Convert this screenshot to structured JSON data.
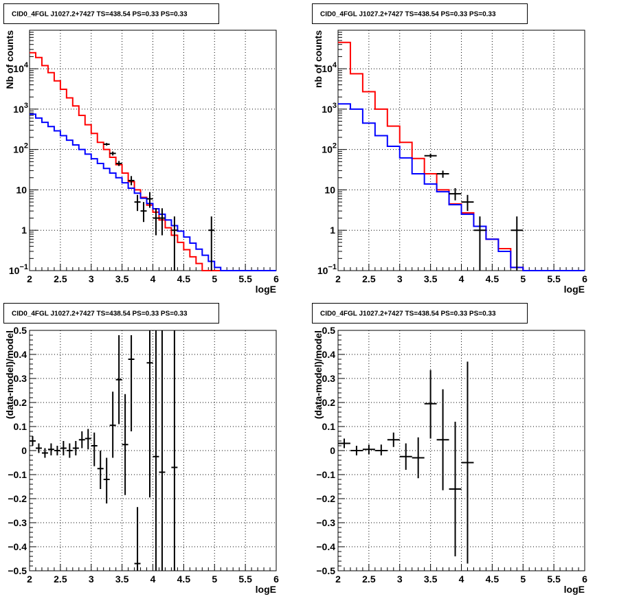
{
  "colors": {
    "data": "#000000",
    "model": "#ff0000",
    "background_component": "#0000ff",
    "grid": "#000000"
  },
  "chart_data": [
    {
      "type": "line",
      "title": "CID0_4FGL J1027.2+7427 TS=438.54 PS=0.33 PS=0.33",
      "xlabel": "logE",
      "ylabel": "Nb of counts",
      "xlim": [
        2,
        6
      ],
      "ylim": [
        0.1,
        90000
      ],
      "yscale": "log",
      "grid": true,
      "xticks": [
        "2",
        "2.5",
        "3",
        "3.5",
        "4",
        "4.5",
        "5",
        "5.5",
        "6"
      ],
      "yticks": [
        {
          "value": 0.1,
          "label": "10",
          "exp": "−1"
        },
        {
          "value": 1,
          "label": "1",
          "exp": ""
        },
        {
          "value": 10,
          "label": "10",
          "exp": ""
        },
        {
          "value": 100,
          "label": "10",
          "exp": "2"
        },
        {
          "value": 1000,
          "label": "10",
          "exp": "3"
        },
        {
          "value": 10000,
          "label": "10",
          "exp": "4"
        }
      ],
      "bin_edges": [
        2,
        2.1,
        2.2,
        2.3,
        2.4,
        2.5,
        2.6,
        2.7,
        2.8,
        2.9,
        3,
        3.1,
        3.2,
        3.3,
        3.4,
        3.5,
        3.6,
        3.7,
        3.8,
        3.9,
        4,
        4.1,
        4.2,
        4.3,
        4.4,
        4.5,
        4.6,
        4.7,
        4.8,
        4.9,
        5,
        5.1,
        5.2,
        5.3,
        5.4,
        5.5,
        5.6,
        5.7,
        5.8,
        5.9,
        6
      ],
      "series": [
        {
          "kind": "histogram",
          "color": "red",
          "values": [
            25000,
            19000,
            12000,
            8000,
            5000,
            3100,
            1900,
            1200,
            700,
            410,
            250,
            150,
            100,
            64,
            42,
            26,
            16,
            10,
            6.5,
            4.2,
            2.8,
            1.8,
            1.15,
            0.75,
            0.5,
            0.33,
            0.22,
            0.15,
            0.1,
            0.1,
            0.1,
            0.1,
            0.1,
            0.1,
            0.1,
            0.1,
            0.1,
            0.1,
            0.1,
            0.1
          ]
        },
        {
          "kind": "histogram",
          "color": "blue",
          "values": [
            750,
            600,
            470,
            370,
            290,
            220,
            170,
            130,
            100,
            77,
            59,
            45,
            34,
            26,
            20,
            15,
            11,
            8.3,
            6.2,
            4.6,
            3.4,
            2.5,
            1.8,
            1.3,
            0.95,
            0.68,
            0.48,
            0.34,
            0.24,
            0.17,
            0.12,
            0.1,
            0.1,
            0.1,
            0.1,
            0.1,
            0.1,
            0.1,
            0.1,
            0.1
          ]
        },
        {
          "kind": "points",
          "color": "black",
          "points": [
            {
              "x": 3.25,
              "xerr": 0.05,
              "y": 135,
              "ylo": 125,
              "yhi": 145
            },
            {
              "x": 3.35,
              "xerr": 0.05,
              "y": 80,
              "ylo": 71,
              "yhi": 89
            },
            {
              "x": 3.45,
              "xerr": 0.05,
              "y": 45,
              "ylo": 39,
              "yhi": 52
            },
            {
              "x": 3.65,
              "xerr": 0.05,
              "y": 17,
              "ylo": 13,
              "yhi": 22
            },
            {
              "x": 3.75,
              "xerr": 0.05,
              "y": 5,
              "ylo": 3,
              "yhi": 7.5
            },
            {
              "x": 3.85,
              "xerr": 0.05,
              "y": 3,
              "ylo": 1.6,
              "yhi": 5
            },
            {
              "x": 3.95,
              "xerr": 0.05,
              "y": 6,
              "ylo": 3.6,
              "yhi": 8.8
            },
            {
              "x": 4.05,
              "xerr": 0.05,
              "y": 2,
              "ylo": 0.75,
              "yhi": 3.5
            },
            {
              "x": 4.15,
              "xerr": 0.05,
              "y": 2,
              "ylo": 0.75,
              "yhi": 3.5
            },
            {
              "x": 4.35,
              "xerr": 0.05,
              "y": 1,
              "ylo": 0.1,
              "yhi": 2.2
            },
            {
              "x": 4.95,
              "xerr": 0.05,
              "y": 1,
              "ylo": 0.1,
              "yhi": 2.2
            }
          ]
        }
      ]
    },
    {
      "type": "line",
      "title": "CID0_4FGL J1027.2+7427 TS=438.54 PS=0.33 PS=0.33",
      "xlabel": "logE",
      "ylabel": "nb of counts",
      "xlim": [
        2,
        6
      ],
      "ylim": [
        0.1,
        90000
      ],
      "yscale": "log",
      "grid": true,
      "xticks": [
        "2",
        "2.5",
        "3",
        "3.5",
        "4",
        "4.5",
        "5",
        "5.5",
        "6"
      ],
      "yticks": [
        {
          "value": 0.1,
          "label": "10",
          "exp": "−1"
        },
        {
          "value": 1,
          "label": "1",
          "exp": ""
        },
        {
          "value": 10,
          "label": "10",
          "exp": ""
        },
        {
          "value": 100,
          "label": "10",
          "exp": "2"
        },
        {
          "value": 1000,
          "label": "10",
          "exp": "3"
        },
        {
          "value": 10000,
          "label": "10",
          "exp": "4"
        }
      ],
      "bin_edges": [
        2,
        2.2,
        2.4,
        2.6,
        2.8,
        3,
        3.2,
        3.4,
        3.6,
        3.8,
        4,
        4.2,
        4.4,
        4.6,
        4.8,
        5,
        5.2,
        5.4,
        5.6,
        5.8,
        6
      ],
      "series": [
        {
          "kind": "histogram",
          "color": "red",
          "values": [
            45000,
            7500,
            2700,
            1000,
            380,
            150,
            60,
            25,
            10,
            4.5,
            2.7,
            1.25,
            0.6,
            0.35,
            0.12,
            0.1,
            0.1,
            0.1,
            0.1,
            0.1
          ]
        },
        {
          "kind": "histogram",
          "color": "blue",
          "values": [
            1350,
            1000,
            450,
            220,
            120,
            62,
            25,
            14,
            9,
            4.3,
            2.5,
            1.25,
            0.6,
            0.3,
            0.12,
            0.1,
            0.1,
            0.1,
            0.1,
            0.1
          ]
        },
        {
          "kind": "points",
          "color": "black",
          "points": [
            {
              "x": 3.5,
              "xerr": 0.1,
              "y": 70,
              "ylo": 62,
              "yhi": 79
            },
            {
              "x": 3.7,
              "xerr": 0.1,
              "y": 25,
              "ylo": 20,
              "yhi": 30
            },
            {
              "x": 3.9,
              "xerr": 0.1,
              "y": 8,
              "ylo": 5.5,
              "yhi": 11
            },
            {
              "x": 4.1,
              "xerr": 0.1,
              "y": 5,
              "ylo": 3,
              "yhi": 7.5
            },
            {
              "x": 4.3,
              "xerr": 0.1,
              "y": 1,
              "ylo": 0.1,
              "yhi": 2.2
            },
            {
              "x": 4.9,
              "xerr": 0.1,
              "y": 1,
              "ylo": 0.1,
              "yhi": 2.2
            }
          ]
        }
      ]
    },
    {
      "type": "scatter",
      "title": "CID0_4FGL J1027.2+7427 TS=438.54 PS=0.33 PS=0.33",
      "xlabel": "logE",
      "ylabel": "(data-model)/model",
      "xlim": [
        2,
        6
      ],
      "ylim": [
        -0.5,
        0.5
      ],
      "yscale": "linear",
      "grid": true,
      "xticks": [
        "2",
        "2.5",
        "3",
        "3.5",
        "4",
        "4.5",
        "5",
        "5.5",
        "6"
      ],
      "yticks": [
        {
          "value": -0.5,
          "label": "−0.5",
          "exp": ""
        },
        {
          "value": -0.4,
          "label": "−0.4",
          "exp": ""
        },
        {
          "value": -0.3,
          "label": "−0.3",
          "exp": ""
        },
        {
          "value": -0.2,
          "label": "−0.2",
          "exp": ""
        },
        {
          "value": -0.1,
          "label": "−0.1",
          "exp": ""
        },
        {
          "value": 0,
          "label": "0",
          "exp": ""
        },
        {
          "value": 0.1,
          "label": "0.1",
          "exp": ""
        },
        {
          "value": 0.2,
          "label": "0.2",
          "exp": ""
        },
        {
          "value": 0.3,
          "label": "0.3",
          "exp": ""
        },
        {
          "value": 0.4,
          "label": "0.4",
          "exp": ""
        },
        {
          "value": 0.5,
          "label": "0.5",
          "exp": ""
        }
      ],
      "series": [
        {
          "kind": "points",
          "color": "black",
          "points": [
            {
              "x": 2.05,
              "xerr": 0.05,
              "y": 0.04,
              "ylo": 0.02,
              "yhi": 0.06
            },
            {
              "x": 2.15,
              "xerr": 0.05,
              "y": 0.01,
              "ylo": -0.01,
              "yhi": 0.03
            },
            {
              "x": 2.25,
              "xerr": 0.05,
              "y": -0.01,
              "ylo": -0.03,
              "yhi": 0.01
            },
            {
              "x": 2.35,
              "xerr": 0.05,
              "y": 0.005,
              "ylo": -0.02,
              "yhi": 0.03
            },
            {
              "x": 2.45,
              "xerr": 0.05,
              "y": 0.0,
              "ylo": -0.02,
              "yhi": 0.02
            },
            {
              "x": 2.55,
              "xerr": 0.05,
              "y": 0.01,
              "ylo": -0.02,
              "yhi": 0.04
            },
            {
              "x": 2.65,
              "xerr": 0.05,
              "y": 0.0,
              "ylo": -0.03,
              "yhi": 0.03
            },
            {
              "x": 2.75,
              "xerr": 0.05,
              "y": 0.01,
              "ylo": -0.02,
              "yhi": 0.04
            },
            {
              "x": 2.85,
              "xerr": 0.05,
              "y": 0.045,
              "ylo": 0.01,
              "yhi": 0.08
            },
            {
              "x": 2.95,
              "xerr": 0.05,
              "y": 0.05,
              "ylo": 0.005,
              "yhi": 0.09
            },
            {
              "x": 3.05,
              "xerr": 0.05,
              "y": 0.02,
              "ylo": -0.065,
              "yhi": 0.075
            },
            {
              "x": 3.15,
              "xerr": 0.05,
              "y": -0.075,
              "ylo": -0.16,
              "yhi": 0.0
            },
            {
              "x": 3.25,
              "xerr": 0.05,
              "y": -0.12,
              "ylo": -0.22,
              "yhi": -0.03
            },
            {
              "x": 3.35,
              "xerr": 0.05,
              "y": 0.105,
              "ylo": -0.03,
              "yhi": 0.245
            },
            {
              "x": 3.45,
              "xerr": 0.05,
              "y": 0.295,
              "ylo": 0.11,
              "yhi": 0.48
            },
            {
              "x": 3.55,
              "xerr": 0.05,
              "y": 0.025,
              "ylo": -0.185,
              "yhi": 0.235
            },
            {
              "x": 3.65,
              "xerr": 0.05,
              "y": 0.38,
              "ylo": 0.08,
              "yhi": 0.48
            },
            {
              "x": 3.75,
              "xerr": 0.05,
              "y": -0.47,
              "ylo": -0.5,
              "yhi": -0.235
            },
            {
              "x": 3.95,
              "xerr": 0.05,
              "y": 0.365,
              "ylo": -0.195,
              "yhi": 0.5
            },
            {
              "x": 4.05,
              "xerr": 0.05,
              "y": -0.025,
              "ylo": -0.5,
              "yhi": 0.5
            },
            {
              "x": 4.15,
              "xerr": 0.05,
              "y": -0.09,
              "ylo": -0.5,
              "yhi": 0.5
            },
            {
              "x": 4.35,
              "xerr": 0.05,
              "y": -0.07,
              "ylo": -0.5,
              "yhi": 0.5
            }
          ]
        }
      ]
    },
    {
      "type": "scatter",
      "title": "CID0_4FGL J1027.2+7427 TS=438.54 PS=0.33 PS=0.33",
      "xlabel": "logE",
      "ylabel": "(data-model)/model",
      "xlim": [
        2,
        6
      ],
      "ylim": [
        -0.5,
        0.5
      ],
      "yscale": "linear",
      "grid": true,
      "xticks": [
        "2",
        "2.5",
        "3",
        "3.5",
        "4",
        "4.5",
        "5",
        "5.5",
        "6"
      ],
      "yticks": [
        {
          "value": -0.5,
          "label": "−0.5",
          "exp": ""
        },
        {
          "value": -0.4,
          "label": "−0.4",
          "exp": ""
        },
        {
          "value": -0.3,
          "label": "−0.3",
          "exp": ""
        },
        {
          "value": -0.2,
          "label": "−0.2",
          "exp": ""
        },
        {
          "value": -0.1,
          "label": "−0.1",
          "exp": ""
        },
        {
          "value": 0,
          "label": "0",
          "exp": ""
        },
        {
          "value": 0.1,
          "label": "0.1",
          "exp": ""
        },
        {
          "value": 0.2,
          "label": "0.2",
          "exp": ""
        },
        {
          "value": 0.3,
          "label": "0.3",
          "exp": ""
        },
        {
          "value": 0.4,
          "label": "0.4",
          "exp": ""
        },
        {
          "value": 0.5,
          "label": "0.5",
          "exp": ""
        }
      ],
      "series": [
        {
          "kind": "points",
          "color": "black",
          "points": [
            {
              "x": 2.1,
              "xerr": 0.1,
              "y": 0.03,
              "ylo": 0.01,
              "yhi": 0.05
            },
            {
              "x": 2.3,
              "xerr": 0.1,
              "y": 0.0,
              "ylo": -0.02,
              "yhi": 0.02
            },
            {
              "x": 2.5,
              "xerr": 0.1,
              "y": 0.005,
              "ylo": -0.015,
              "yhi": 0.025
            },
            {
              "x": 2.7,
              "xerr": 0.1,
              "y": 0.0,
              "ylo": -0.02,
              "yhi": 0.025
            },
            {
              "x": 2.9,
              "xerr": 0.1,
              "y": 0.045,
              "ylo": 0.015,
              "yhi": 0.075
            },
            {
              "x": 3.1,
              "xerr": 0.1,
              "y": -0.025,
              "ylo": -0.08,
              "yhi": 0.03
            },
            {
              "x": 3.3,
              "xerr": 0.1,
              "y": -0.03,
              "ylo": -0.115,
              "yhi": 0.055
            },
            {
              "x": 3.5,
              "xerr": 0.1,
              "y": 0.195,
              "ylo": 0.05,
              "yhi": 0.335
            },
            {
              "x": 3.7,
              "xerr": 0.1,
              "y": 0.045,
              "ylo": -0.165,
              "yhi": 0.255
            },
            {
              "x": 3.9,
              "xerr": 0.1,
              "y": -0.16,
              "ylo": -0.44,
              "yhi": 0.12
            },
            {
              "x": 4.1,
              "xerr": 0.1,
              "y": -0.05,
              "ylo": -0.47,
              "yhi": 0.37
            }
          ]
        }
      ]
    }
  ]
}
